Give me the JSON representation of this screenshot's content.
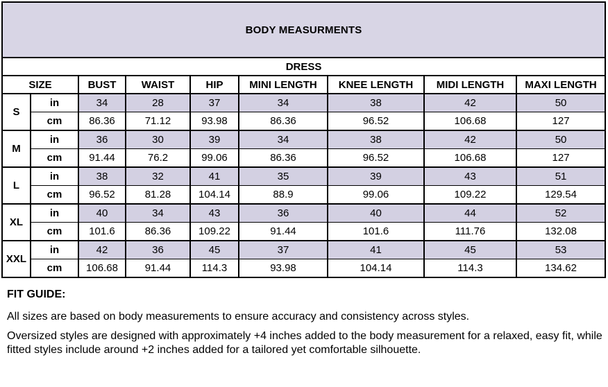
{
  "table": {
    "title": "BODY MEASURMENTS",
    "category": "DRESS",
    "columns": [
      "SIZE",
      "BUST",
      "WAIST",
      "HIP",
      "MINI LENGTH",
      "KNEE LENGTH",
      "MIDI LENGTH",
      "MAXI LENGTH"
    ],
    "unit_labels": {
      "inches": "in",
      "centimeters": "cm"
    },
    "sizes": [
      {
        "label": "S",
        "in": [
          "34",
          "28",
          "37",
          "34",
          "38",
          "42",
          "50"
        ],
        "cm": [
          "86.36",
          "71.12",
          "93.98",
          "86.36",
          "96.52",
          "106.68",
          "127"
        ]
      },
      {
        "label": "M",
        "in": [
          "36",
          "30",
          "39",
          "34",
          "38",
          "42",
          "50"
        ],
        "cm": [
          "91.44",
          "76.2",
          "99.06",
          "86.36",
          "96.52",
          "106.68",
          "127"
        ]
      },
      {
        "label": "L",
        "in": [
          "38",
          "32",
          "41",
          "35",
          "39",
          "43",
          "51"
        ],
        "cm": [
          "96.52",
          "81.28",
          "104.14",
          "88.9",
          "99.06",
          "109.22",
          "129.54"
        ]
      },
      {
        "label": "XL",
        "in": [
          "40",
          "34",
          "43",
          "36",
          "40",
          "44",
          "52"
        ],
        "cm": [
          "101.6",
          "86.36",
          "109.22",
          "91.44",
          "101.6",
          "111.76",
          "132.08"
        ]
      },
      {
        "label": "XXL",
        "in": [
          "42",
          "36",
          "45",
          "37",
          "41",
          "45",
          "53"
        ],
        "cm": [
          "106.68",
          "91.44",
          "114.3",
          "93.98",
          "104.14",
          "114.3",
          "134.62"
        ]
      }
    ]
  },
  "fit_guide": {
    "heading": "FIT GUIDE:",
    "lines": [
      "All sizes are based on body measurements to ensure accuracy and consistency across styles.",
      "Oversized styles are designed with approximately +4 inches added to the body measurement for a relaxed, easy fit, while fitted styles include around +2 inches added for a tailored yet comfortable silhouette."
    ]
  },
  "colors": {
    "header_band": "#d8d5e5",
    "row_highlight": "#d3d0e2",
    "border": "#000000",
    "text": "#000000",
    "background": "#ffffff"
  }
}
